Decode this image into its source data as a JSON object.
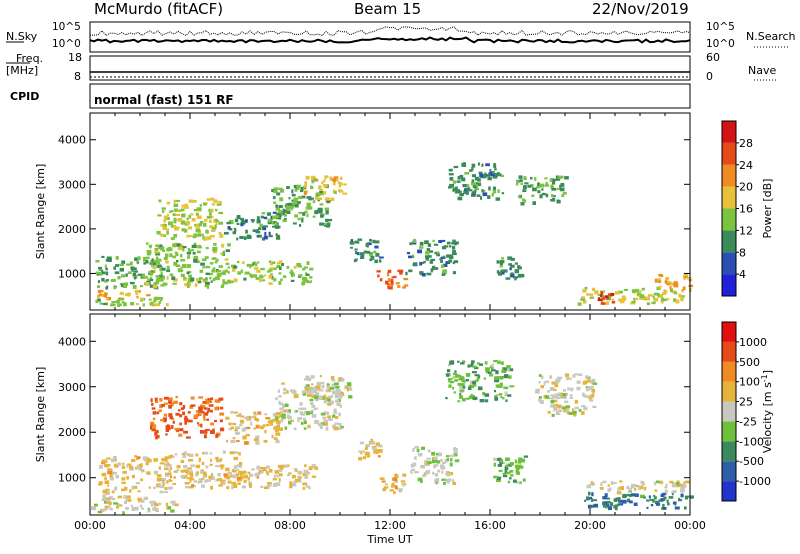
{
  "header": {
    "station": "McMurdo (fitACF)",
    "beam": "Beam 15",
    "date": "22/Nov/2019"
  },
  "aux_panels": {
    "nsky_label": "N.Sky",
    "nsearch_label": "N.Search",
    "noise_ticks": [
      "10^5",
      "10^0"
    ],
    "noise_right_ticks": [
      "10^5",
      "10^0"
    ],
    "freq_label_1": "Freq.",
    "freq_label_2": "[MHz]",
    "freq_ticks": [
      "18",
      "8"
    ],
    "nave_label": "Nave",
    "nave_ticks": [
      "60",
      "0"
    ],
    "cpid_label": "CPID",
    "cpid_text": "normal (fast) 151 RF"
  },
  "chart_data": [
    {
      "type": "heatmap",
      "name": "power-panel",
      "ylabel": "Slant Range [km]",
      "xlabel": "",
      "ylim": [
        180,
        4600
      ],
      "xlim_hours": [
        0,
        24
      ],
      "y_ticks": [
        "4000",
        "3000",
        "2000",
        "1000"
      ],
      "colorbar": {
        "label": "Power [dB]",
        "ticks": [
          "28",
          "24",
          "20",
          "16",
          "12",
          "8",
          "4"
        ],
        "colors": [
          "#2020d8",
          "#2a4fb0",
          "#3b8a5a",
          "#7cc440",
          "#e6c23a",
          "#f08a22",
          "#e64a18",
          "#d41414"
        ],
        "range": [
          0,
          32
        ]
      },
      "regions": [
        {
          "t0": 0.0,
          "t1": 2.3,
          "r0": 450,
          "r1": 640,
          "val": 20
        },
        {
          "t0": 0.0,
          "t1": 2.3,
          "r0": 280,
          "r1": 460,
          "val": 14
        },
        {
          "t0": 2.3,
          "t1": 3.2,
          "r0": 320,
          "r1": 520,
          "val": 16
        },
        {
          "t0": 0.2,
          "t1": 2.8,
          "r0": 700,
          "r1": 1400,
          "val": 12
        },
        {
          "t0": 2.2,
          "t1": 5.5,
          "r0": 700,
          "r1": 1700,
          "val": 14
        },
        {
          "t0": 2.6,
          "t1": 5.2,
          "r0": 1800,
          "r1": 2700,
          "val": 16
        },
        {
          "t0": 5.3,
          "t1": 7.5,
          "r0": 1800,
          "r1": 2400,
          "val": 10
        },
        {
          "t0": 5.5,
          "t1": 8.8,
          "r0": 800,
          "r1": 1300,
          "val": 14
        },
        {
          "t0": 7.2,
          "t1": 9.6,
          "r0": 2100,
          "r1": 3000,
          "val": 12
        },
        {
          "t0": 8.5,
          "t1": 10.2,
          "r0": 2700,
          "r1": 3200,
          "val": 18
        },
        {
          "t0": 10.3,
          "t1": 11.6,
          "r0": 1300,
          "r1": 1800,
          "val": 10
        },
        {
          "t0": 11.4,
          "t1": 12.6,
          "r0": 700,
          "r1": 1100,
          "val": 24
        },
        {
          "t0": 12.6,
          "t1": 14.6,
          "r0": 1000,
          "r1": 1800,
          "val": 10
        },
        {
          "t0": 14.3,
          "t1": 16.5,
          "r0": 2700,
          "r1": 3500,
          "val": 10
        },
        {
          "t0": 17.0,
          "t1": 19.0,
          "r0": 2600,
          "r1": 3200,
          "val": 12
        },
        {
          "t0": 16.0,
          "t1": 17.2,
          "r0": 900,
          "r1": 1400,
          "val": 10
        },
        {
          "t0": 19.5,
          "t1": 24.0,
          "r0": 350,
          "r1": 700,
          "val": 16
        },
        {
          "t0": 20.3,
          "t1": 21.0,
          "r0": 300,
          "r1": 600,
          "val": 28
        },
        {
          "t0": 22.5,
          "t1": 24.0,
          "r0": 700,
          "r1": 1000,
          "val": 20
        }
      ]
    },
    {
      "type": "heatmap",
      "name": "velocity-panel",
      "ylabel": "Slant Range [km]",
      "xlabel": "Time UT",
      "ylim": [
        180,
        4600
      ],
      "xlim_hours": [
        0,
        24
      ],
      "x_ticks": [
        "00:00",
        "04:00",
        "08:00",
        "12:00",
        "16:00",
        "20:00",
        "00:00"
      ],
      "y_ticks": [
        "4000",
        "3000",
        "2000",
        "1000"
      ],
      "colorbar": {
        "label": "Velocity [m s-1]",
        "label_main": "Velocity [m s",
        "label_sup": "-1",
        "label_end": "]",
        "ticks": [
          "1000",
          "500",
          "100",
          "25",
          "-25",
          "-100",
          "-500",
          "-1000"
        ],
        "colors": [
          "#2034c8",
          "#2e5ea8",
          "#3a8a5e",
          "#6cc03a",
          "#c8c8c0",
          "#e6b43a",
          "#f08a22",
          "#e64a18",
          "#e01010"
        ],
        "range": [
          -1200,
          1200
        ]
      },
      "regions": [
        {
          "t0": 0.0,
          "t1": 2.6,
          "r0": 400,
          "r1": 640,
          "val": 60
        },
        {
          "t0": 0.0,
          "t1": 2.6,
          "r0": 250,
          "r1": 400,
          "val": 0
        },
        {
          "t0": 2.4,
          "t1": 3.4,
          "r0": 300,
          "r1": 500,
          "val": 60
        },
        {
          "t0": 0.3,
          "t1": 3.2,
          "r0": 700,
          "r1": 1500,
          "val": 200
        },
        {
          "t0": 2.4,
          "t1": 5.2,
          "r0": 1900,
          "r1": 2800,
          "val": 700
        },
        {
          "t0": 3.0,
          "t1": 6.0,
          "r0": 800,
          "r1": 1600,
          "val": 200
        },
        {
          "t0": 5.4,
          "t1": 7.6,
          "r0": 1800,
          "r1": 2500,
          "val": 200
        },
        {
          "t0": 5.6,
          "t1": 9.0,
          "r0": 800,
          "r1": 1300,
          "val": 200
        },
        {
          "t0": 7.4,
          "t1": 10.0,
          "r0": 2100,
          "r1": 3100,
          "val": 0
        },
        {
          "t0": 8.5,
          "t1": 10.4,
          "r0": 2800,
          "r1": 3300,
          "val": 0
        },
        {
          "t0": 10.6,
          "t1": 11.6,
          "r0": 1400,
          "r1": 1900,
          "val": 200
        },
        {
          "t0": 11.5,
          "t1": 12.6,
          "r0": 700,
          "r1": 1100,
          "val": 200
        },
        {
          "t0": 12.8,
          "t1": 14.6,
          "r0": 900,
          "r1": 1700,
          "val": -60
        },
        {
          "t0": 14.2,
          "t1": 16.8,
          "r0": 2700,
          "r1": 3600,
          "val": -300
        },
        {
          "t0": 16.0,
          "t1": 17.4,
          "r0": 900,
          "r1": 1500,
          "val": -300
        },
        {
          "t0": 17.8,
          "t1": 20.2,
          "r0": 2400,
          "r1": 3300,
          "val": 0
        },
        {
          "t0": 19.6,
          "t1": 24.0,
          "r0": 350,
          "r1": 700,
          "val": -600
        },
        {
          "t0": 19.8,
          "t1": 24.0,
          "r0": 700,
          "r1": 950,
          "val": 60
        }
      ]
    }
  ]
}
